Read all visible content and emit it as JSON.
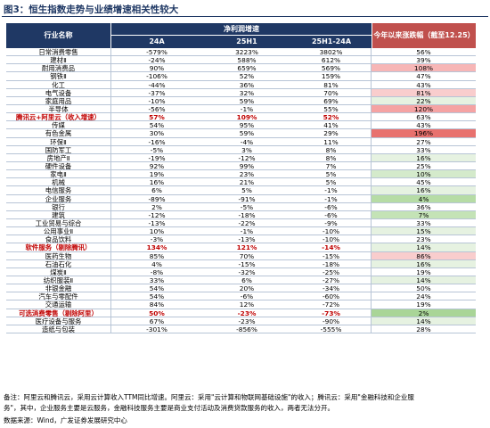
{
  "figure_title": "图3：恒生指数走势与业绩增速相关性较大",
  "header": {
    "industry": "行业名称",
    "group": "净利润增速",
    "col_24a": "24A",
    "col_25h1": "25H1",
    "col_diff": "25H1-24A",
    "ytd": "今年以来涨跌幅（截至12.25）"
  },
  "rows": [
    {
      "name": "日常消费零售",
      "a24": "-579%",
      "h25": "3223%",
      "diff": "3802%",
      "ytd": "56%",
      "bg": "#ffffff",
      "hl": false
    },
    {
      "name": "建材Ⅱ",
      "a24": "-24%",
      "h25": "588%",
      "diff": "612%",
      "ytd": "39%",
      "bg": "#ffffff",
      "hl": false
    },
    {
      "name": "耐用消费品",
      "a24": "90%",
      "h25": "659%",
      "diff": "569%",
      "ytd": "108%",
      "bg": "#f7b6b6",
      "hl": false
    },
    {
      "name": "钢铁Ⅱ",
      "a24": "-106%",
      "h25": "52%",
      "diff": "159%",
      "ytd": "47%",
      "bg": "#ffffff",
      "hl": false
    },
    {
      "name": "化工",
      "a24": "-44%",
      "h25": "36%",
      "diff": "81%",
      "ytd": "43%",
      "bg": "#ffffff",
      "hl": false
    },
    {
      "name": "电气设备",
      "a24": "-37%",
      "h25": "32%",
      "diff": "70%",
      "ytd": "81%",
      "bg": "#f9cdcd",
      "hl": false
    },
    {
      "name": "家庭用品",
      "a24": "-10%",
      "h25": "59%",
      "diff": "69%",
      "ytd": "22%",
      "bg": "#e6f2e1",
      "hl": false
    },
    {
      "name": "半导体",
      "a24": "-56%",
      "h25": "-1%",
      "diff": "55%",
      "ytd": "120%",
      "bg": "#f5a3a3",
      "hl": false
    },
    {
      "name": "腾讯云+阿里云（收入增速）",
      "a24": "57%",
      "h25": "109%",
      "diff": "52%",
      "ytd": "63%",
      "bg": "#ffffff",
      "hl": true
    },
    {
      "name": "传媒",
      "a24": "54%",
      "h25": "95%",
      "diff": "41%",
      "ytd": "43%",
      "bg": "#ffffff",
      "hl": false
    },
    {
      "name": "有色金属",
      "a24": "30%",
      "h25": "59%",
      "diff": "29%",
      "ytd": "196%",
      "bg": "#e8716e",
      "hl": false
    },
    {
      "name": "环保Ⅱ",
      "a24": "-16%",
      "h25": "-4%",
      "diff": "11%",
      "ytd": "27%",
      "bg": "#ffffff",
      "hl": false
    },
    {
      "name": "国防军工",
      "a24": "-5%",
      "h25": "3%",
      "diff": "8%",
      "ytd": "33%",
      "bg": "#ffffff",
      "hl": false
    },
    {
      "name": "房地产Ⅱ",
      "a24": "-19%",
      "h25": "-12%",
      "diff": "8%",
      "ytd": "16%",
      "bg": "#e6f2e1",
      "hl": false
    },
    {
      "name": "硬件设备",
      "a24": "92%",
      "h25": "99%",
      "diff": "7%",
      "ytd": "25%",
      "bg": "#ffffff",
      "hl": false
    },
    {
      "name": "家电Ⅱ",
      "a24": "19%",
      "h25": "23%",
      "diff": "5%",
      "ytd": "10%",
      "bg": "#d4eacb",
      "hl": false
    },
    {
      "name": "机械",
      "a24": "16%",
      "h25": "21%",
      "diff": "5%",
      "ytd": "45%",
      "bg": "#ffffff",
      "hl": false
    },
    {
      "name": "电信服务",
      "a24": "6%",
      "h25": "5%",
      "diff": "-1%",
      "ytd": "16%",
      "bg": "#e6f2e1",
      "hl": false
    },
    {
      "name": "企业服务",
      "a24": "-89%",
      "h25": "-91%",
      "diff": "-1%",
      "ytd": "4%",
      "bg": "#b6dca5",
      "hl": false
    },
    {
      "name": "银行",
      "a24": "2%",
      "h25": "-5%",
      "diff": "-6%",
      "ytd": "36%",
      "bg": "#ffffff",
      "hl": false
    },
    {
      "name": "建筑",
      "a24": "-12%",
      "h25": "-18%",
      "diff": "-6%",
      "ytd": "7%",
      "bg": "#c4e3b6",
      "hl": false
    },
    {
      "name": "工业贸易与综合",
      "a24": "-13%",
      "h25": "-22%",
      "diff": "-9%",
      "ytd": "33%",
      "bg": "#ffffff",
      "hl": false
    },
    {
      "name": "公用事业Ⅱ",
      "a24": "10%",
      "h25": "-1%",
      "diff": "-10%",
      "ytd": "15%",
      "bg": "#e6f2e1",
      "hl": false
    },
    {
      "name": "食品饮料",
      "a24": "-3%",
      "h25": "-13%",
      "diff": "-10%",
      "ytd": "23%",
      "bg": "#ffffff",
      "hl": false
    },
    {
      "name": "软件服务（剔除腾讯）",
      "a24": "134%",
      "h25": "121%",
      "diff": "-14%",
      "ytd": "14%",
      "bg": "#e6f2e1",
      "hl": true
    },
    {
      "name": "医药生物",
      "a24": "85%",
      "h25": "70%",
      "diff": "-15%",
      "ytd": "86%",
      "bg": "#f9cdcd",
      "hl": false
    },
    {
      "name": "石油石化",
      "a24": "4%",
      "h25": "-15%",
      "diff": "-18%",
      "ytd": "16%",
      "bg": "#e6f2e1",
      "hl": false
    },
    {
      "name": "煤炭Ⅱ",
      "a24": "-8%",
      "h25": "-32%",
      "diff": "-25%",
      "ytd": "19%",
      "bg": "#ffffff",
      "hl": false
    },
    {
      "name": "纺织服装Ⅱ",
      "a24": "33%",
      "h25": "6%",
      "diff": "-27%",
      "ytd": "14%",
      "bg": "#e6f2e1",
      "hl": false
    },
    {
      "name": "非银金融",
      "a24": "54%",
      "h25": "20%",
      "diff": "-34%",
      "ytd": "50%",
      "bg": "#ffffff",
      "hl": false
    },
    {
      "name": "汽车与零配件",
      "a24": "54%",
      "h25": "-6%",
      "diff": "-60%",
      "ytd": "24%",
      "bg": "#ffffff",
      "hl": false
    },
    {
      "name": "交通运输",
      "a24": "84%",
      "h25": "12%",
      "diff": "-72%",
      "ytd": "19%",
      "bg": "#ffffff",
      "hl": false
    },
    {
      "name": "可选消费零售（剔除阿里）",
      "a24": "50%",
      "h25": "-23%",
      "diff": "-73%",
      "ytd": "2%",
      "bg": "#a9d597",
      "hl": true
    },
    {
      "name": "医疗设备与服务",
      "a24": "67%",
      "h25": "-23%",
      "diff": "-90%",
      "ytd": "14%",
      "bg": "#e6f2e1",
      "hl": false
    },
    {
      "name": "造纸与包装",
      "a24": "-301%",
      "h25": "-856%",
      "diff": "-555%",
      "ytd": "28%",
      "bg": "#ffffff",
      "hl": false
    }
  ],
  "notes": {
    "line1": "备注：阿里云和腾讯云，采用云计算收入TTM同比增速。阿里云：采用\"云计算和物联网基础设施\"的收入；腾讯云：采用\"金融科技和企业服",
    "line2": "务\"，其中，企业服务主要是云服务，金融科技服务主要是商业支付活动及消费贷款服务的收入，两者无法分开。"
  },
  "source": "数据来源：Wind，广发证券发展研究中心"
}
